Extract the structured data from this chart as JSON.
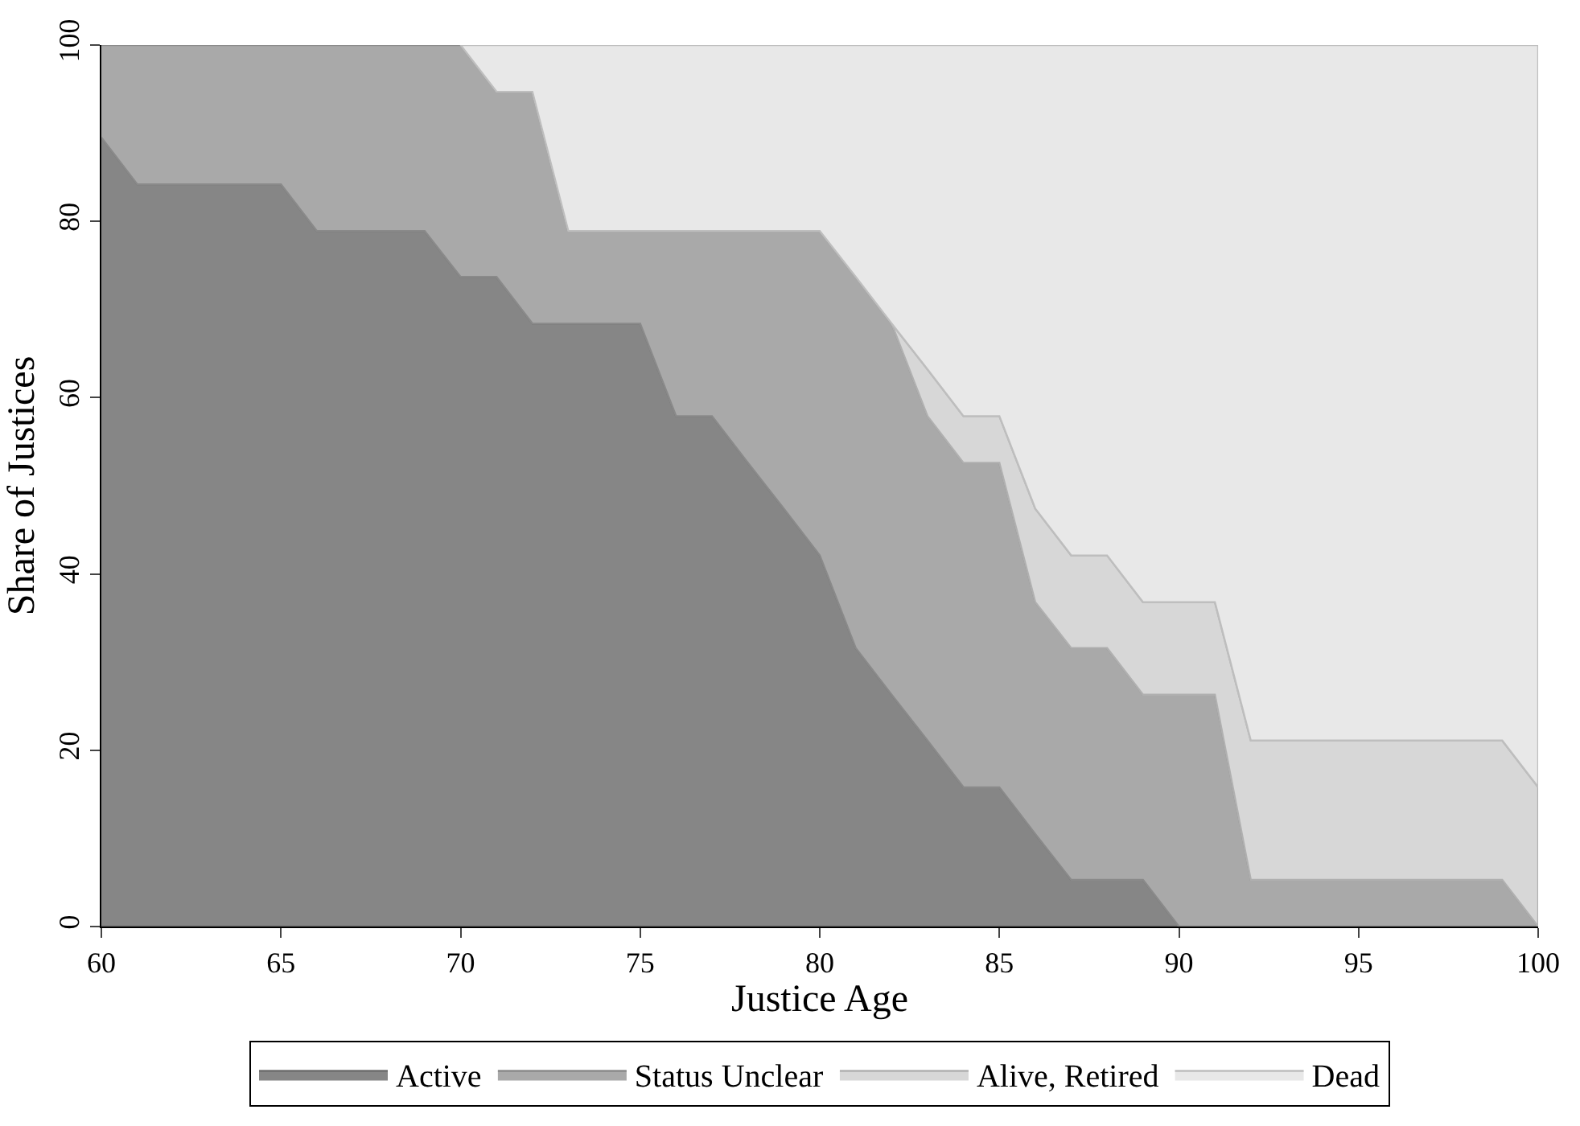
{
  "chart_data": {
    "type": "area",
    "stacked": true,
    "xlabel": "Justice Age",
    "ylabel": "Share of Justices",
    "x": [
      60,
      61,
      62,
      63,
      64,
      65,
      66,
      67,
      68,
      69,
      70,
      71,
      72,
      73,
      74,
      75,
      76,
      77,
      78,
      79,
      80,
      81,
      82,
      83,
      84,
      85,
      86,
      87,
      88,
      89,
      90,
      91,
      92,
      93,
      94,
      95,
      96,
      97,
      98,
      99,
      100
    ],
    "series": [
      {
        "name": "Active",
        "color": "#868686",
        "values": [
          89.5,
          84.2,
          84.2,
          84.2,
          84.2,
          84.2,
          78.9,
          78.9,
          78.9,
          78.9,
          73.7,
          73.7,
          68.4,
          68.4,
          68.4,
          68.4,
          57.9,
          57.9,
          52.6,
          47.4,
          42.1,
          31.6,
          26.3,
          21.1,
          15.8,
          15.8,
          10.5,
          5.3,
          5.3,
          5.3,
          0,
          null,
          null,
          null,
          null,
          null,
          null,
          null,
          null,
          null,
          null
        ]
      },
      {
        "name": "Status Unclear",
        "color": "#a9a9a9",
        "values": [
          10.5,
          15.8,
          15.8,
          15.8,
          15.8,
          15.8,
          21.1,
          21.1,
          21.1,
          21.1,
          26.3,
          21.0,
          26.3,
          10.5,
          10.5,
          10.5,
          21.0,
          21.0,
          26.3,
          31.5,
          36.8,
          42.1,
          42.1,
          36.8,
          36.8,
          36.8,
          26.3,
          26.3,
          26.3,
          21.0,
          26.3,
          26.3,
          5.3,
          5.3,
          5.3,
          5.3,
          5.3,
          5.3,
          5.3,
          5.3,
          0
        ]
      },
      {
        "name": "Alive, Retired",
        "color": "#d7d7d7",
        "values": [
          null,
          null,
          null,
          null,
          null,
          null,
          null,
          null,
          null,
          null,
          null,
          null,
          null,
          null,
          null,
          null,
          null,
          null,
          null,
          null,
          null,
          null,
          0,
          5.3,
          5.3,
          5.3,
          10.6,
          10.5,
          10.5,
          10.5,
          10.5,
          10.5,
          15.8,
          15.8,
          15.8,
          15.8,
          15.8,
          15.8,
          15.8,
          15.8,
          15.8
        ]
      },
      {
        "name": "Dead",
        "color": "#e8e8e8",
        "values": [
          null,
          null,
          null,
          null,
          null,
          null,
          null,
          null,
          null,
          null,
          0,
          5.3,
          5.3,
          21.1,
          21.1,
          21.1,
          21.1,
          21.1,
          21.1,
          21.1,
          21.1,
          26.3,
          31.6,
          36.8,
          42.1,
          42.1,
          52.6,
          57.9,
          57.9,
          63.2,
          63.2,
          63.2,
          78.9,
          78.9,
          78.9,
          78.9,
          78.9,
          78.9,
          78.9,
          78.9,
          84.2
        ]
      }
    ],
    "xlim": [
      60,
      100
    ],
    "xticks": [
      60,
      65,
      70,
      75,
      80,
      85,
      90,
      95,
      100
    ],
    "ylim": [
      0,
      100
    ],
    "yticks": [
      0,
      20,
      40,
      60,
      80,
      100
    ],
    "legend": "bottom"
  }
}
